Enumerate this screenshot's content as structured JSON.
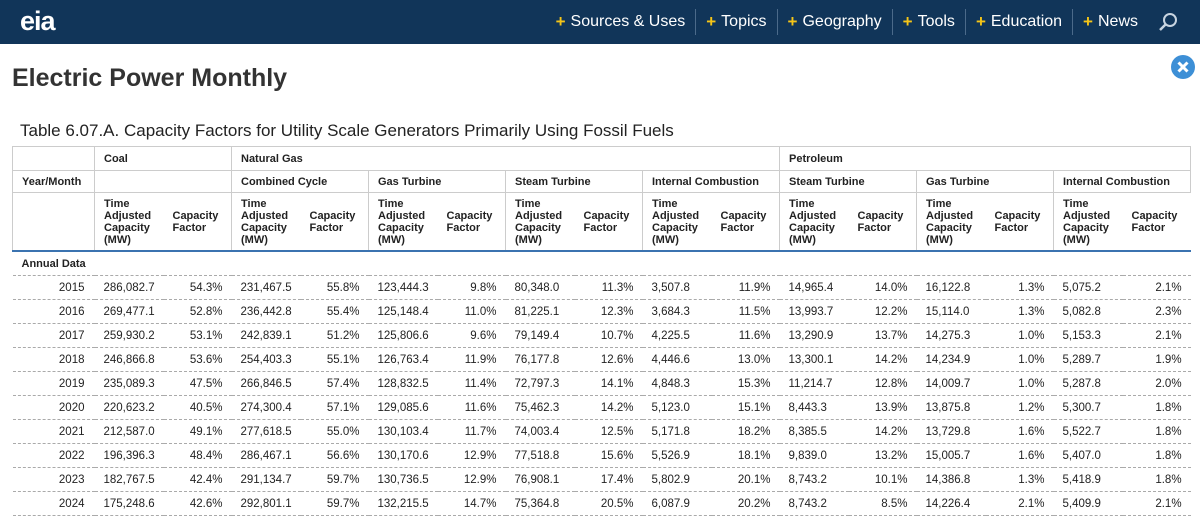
{
  "nav": {
    "logo": "eia",
    "items": [
      "Sources & Uses",
      "Topics",
      "Geography",
      "Tools",
      "Education",
      "News"
    ]
  },
  "header": {
    "title": "Electric Power Monthly"
  },
  "table": {
    "title": "Table 6.07.A. Capacity Factors for Utility Scale Generators Primarily Using Fossil Fuels",
    "groups": [
      "Coal",
      "Natural Gas",
      "Petroleum"
    ],
    "year_header": "Year/Month",
    "subgroups": [
      "Combined Cycle",
      "Gas Turbine",
      "Steam Turbine",
      "Internal Combustion",
      "Steam Turbine",
      "Gas Turbine",
      "Internal Combustion"
    ],
    "subheaders": [
      "Time Adjusted Capacity (MW)",
      "Capacity Factor",
      "Time Adjusted Capacity (MW)",
      "Capacity Factor",
      "Time Adjusted Capacity (MW)",
      "Capacity Factor",
      "Time Adjusted Capacity (MW)",
      "Capacity Factor",
      "Time Adjusted Capacity (MW)",
      "Capacity Factor",
      "Time Adjusted Capacity (MW)",
      "Capacity Factor",
      "Time Adjusted Capacity (MW)",
      "Capacity Factor",
      "Time Adjusted Capacity (MW)",
      "Capacity Factor"
    ],
    "section": "Annual Data",
    "rows": [
      [
        "2015",
        "286,082.7",
        "54.3%",
        "231,467.5",
        "55.8%",
        "123,444.3",
        "9.8%",
        "80,348.0",
        "11.3%",
        "3,507.8",
        "11.9%",
        "14,965.4",
        "14.0%",
        "16,122.8",
        "1.3%",
        "5,075.2",
        "2.1%"
      ],
      [
        "2016",
        "269,477.1",
        "52.8%",
        "236,442.8",
        "55.4%",
        "125,148.4",
        "11.0%",
        "81,225.1",
        "12.3%",
        "3,684.3",
        "11.5%",
        "13,993.7",
        "12.2%",
        "15,114.0",
        "1.3%",
        "5,082.8",
        "2.3%"
      ],
      [
        "2017",
        "259,930.2",
        "53.1%",
        "242,839.1",
        "51.2%",
        "125,806.6",
        "9.6%",
        "79,149.4",
        "10.7%",
        "4,225.5",
        "11.6%",
        "13,290.9",
        "13.7%",
        "14,275.3",
        "1.0%",
        "5,153.3",
        "2.1%"
      ],
      [
        "2018",
        "246,866.8",
        "53.6%",
        "254,403.3",
        "55.1%",
        "126,763.4",
        "11.9%",
        "76,177.8",
        "12.6%",
        "4,446.6",
        "13.0%",
        "13,300.1",
        "14.2%",
        "14,234.9",
        "1.0%",
        "5,289.7",
        "1.9%"
      ],
      [
        "2019",
        "235,089.3",
        "47.5%",
        "266,846.5",
        "57.4%",
        "128,832.5",
        "11.4%",
        "72,797.3",
        "14.1%",
        "4,848.3",
        "15.3%",
        "11,214.7",
        "12.8%",
        "14,009.7",
        "1.0%",
        "5,287.8",
        "2.0%"
      ],
      [
        "2020",
        "220,623.2",
        "40.5%",
        "274,300.4",
        "57.1%",
        "129,085.6",
        "11.6%",
        "75,462.3",
        "14.2%",
        "5,123.0",
        "15.1%",
        "8,443.3",
        "13.9%",
        "13,875.8",
        "1.2%",
        "5,300.7",
        "1.8%"
      ],
      [
        "2021",
        "212,587.0",
        "49.1%",
        "277,618.5",
        "55.0%",
        "130,103.4",
        "11.7%",
        "74,003.4",
        "12.5%",
        "5,171.8",
        "18.2%",
        "8,385.5",
        "14.2%",
        "13,729.8",
        "1.6%",
        "5,522.7",
        "1.8%"
      ],
      [
        "2022",
        "196,396.3",
        "48.4%",
        "286,467.1",
        "56.6%",
        "130,170.6",
        "12.9%",
        "77,518.8",
        "15.6%",
        "5,526.9",
        "18.1%",
        "9,839.0",
        "13.2%",
        "15,005.7",
        "1.6%",
        "5,407.0",
        "1.8%"
      ],
      [
        "2023",
        "182,767.5",
        "42.4%",
        "291,134.7",
        "59.7%",
        "130,736.5",
        "12.9%",
        "76,908.1",
        "17.4%",
        "5,802.9",
        "20.1%",
        "8,743.2",
        "10.1%",
        "14,386.8",
        "1.3%",
        "5,418.9",
        "1.8%"
      ],
      [
        "2024",
        "175,248.6",
        "42.6%",
        "292,801.1",
        "59.7%",
        "132,215.5",
        "14.7%",
        "75,364.8",
        "20.5%",
        "6,087.9",
        "20.2%",
        "8,743.2",
        "8.5%",
        "14,226.4",
        "2.1%",
        "5,409.9",
        "2.1%"
      ]
    ]
  }
}
